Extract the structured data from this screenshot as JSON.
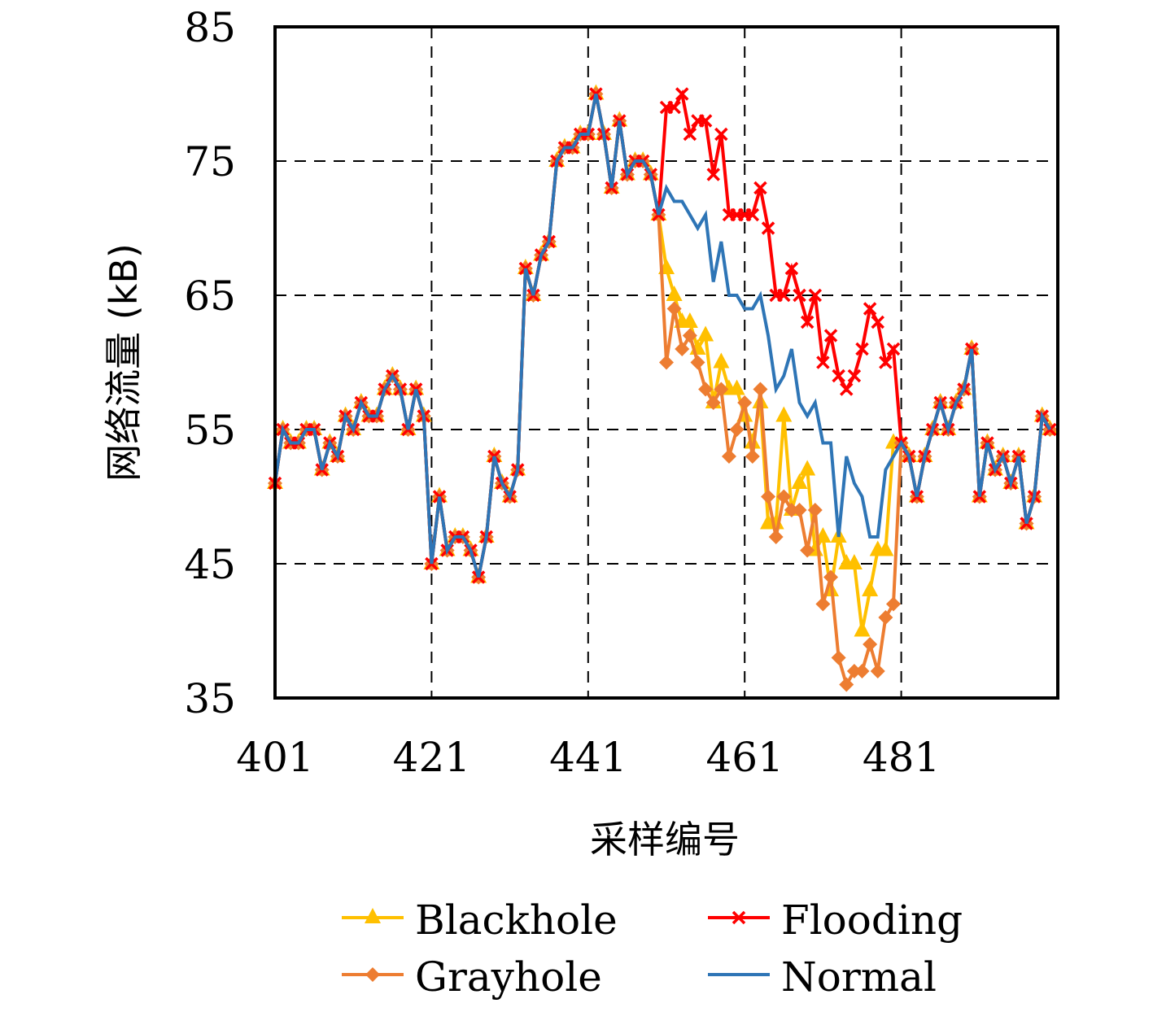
{
  "chart_data": {
    "type": "line",
    "title": "",
    "xlabel": "采样编号",
    "ylabel": "网络流量 (kB)",
    "xlim": [
      401,
      501
    ],
    "ylim": [
      35,
      85
    ],
    "xticks": [
      401,
      421,
      441,
      461,
      481
    ],
    "xtick_labels": [
      "401",
      "421",
      "441",
      "461",
      "481"
    ],
    "yticks": [
      35,
      45,
      55,
      65,
      75,
      85
    ],
    "ytick_labels": [
      "35",
      "45",
      "55",
      "65",
      "75",
      "85"
    ],
    "grid": "dashed",
    "legend_position": "bottom",
    "x": [
      401,
      402,
      403,
      404,
      405,
      406,
      407,
      408,
      409,
      410,
      411,
      412,
      413,
      414,
      415,
      416,
      417,
      418,
      419,
      420,
      421,
      422,
      423,
      424,
      425,
      426,
      427,
      428,
      429,
      430,
      431,
      432,
      433,
      434,
      435,
      436,
      437,
      438,
      439,
      440,
      441,
      442,
      443,
      444,
      445,
      446,
      447,
      448,
      449,
      450,
      451,
      452,
      453,
      454,
      455,
      456,
      457,
      458,
      459,
      460,
      461,
      462,
      463,
      464,
      465,
      466,
      467,
      468,
      469,
      470,
      471,
      472,
      473,
      474,
      475,
      476,
      477,
      478,
      479,
      480,
      481,
      482,
      483,
      484,
      485,
      486,
      487,
      488,
      489,
      490,
      491,
      492,
      493,
      494,
      495,
      496,
      497,
      498,
      499,
      500
    ],
    "series": [
      {
        "name": "Blackhole",
        "color": "#FFC000",
        "marker": "triangle",
        "values": [
          51,
          55,
          54,
          54,
          55,
          55,
          52,
          54,
          53,
          56,
          55,
          57,
          56,
          56,
          58,
          59,
          58,
          55,
          58,
          56,
          45,
          50,
          46,
          47,
          47,
          46,
          44,
          47,
          53,
          51,
          50,
          52,
          67,
          65,
          68,
          69,
          75,
          76,
          76,
          77,
          77,
          80,
          77,
          73,
          78,
          74,
          75,
          75,
          74,
          71,
          67,
          65,
          63,
          63,
          61,
          62,
          57,
          60,
          58,
          58,
          56,
          54,
          57,
          48,
          48,
          56,
          49,
          51,
          52,
          46,
          47,
          43,
          47,
          45,
          45,
          40,
          43,
          46,
          46,
          54,
          54,
          53,
          50,
          53,
          55,
          57,
          55,
          57,
          58,
          61,
          50,
          54,
          52,
          53,
          51,
          53,
          48,
          50,
          56,
          55
        ]
      },
      {
        "name": "Grayhole",
        "color": "#ED7D31",
        "marker": "diamond",
        "values": [
          51,
          55,
          54,
          54,
          55,
          55,
          52,
          54,
          53,
          56,
          55,
          57,
          56,
          56,
          58,
          59,
          58,
          55,
          58,
          56,
          45,
          50,
          46,
          47,
          47,
          46,
          44,
          47,
          53,
          51,
          50,
          52,
          67,
          65,
          68,
          69,
          75,
          76,
          76,
          77,
          77,
          80,
          77,
          73,
          78,
          74,
          75,
          75,
          74,
          71,
          60,
          64,
          61,
          62,
          60,
          58,
          57,
          58,
          53,
          55,
          57,
          53,
          58,
          50,
          47,
          50,
          49,
          49,
          46,
          49,
          42,
          44,
          38,
          36,
          37,
          37,
          39,
          37,
          41,
          42,
          54,
          53,
          50,
          53,
          55,
          57,
          55,
          57,
          58,
          61,
          50,
          54,
          52,
          53,
          51,
          53,
          48,
          50,
          56,
          55
        ]
      },
      {
        "name": "Flooding",
        "color": "#FF0000",
        "marker": "x",
        "values": [
          51,
          55,
          54,
          54,
          55,
          55,
          52,
          54,
          53,
          56,
          55,
          57,
          56,
          56,
          58,
          59,
          58,
          55,
          58,
          56,
          45,
          50,
          46,
          47,
          47,
          46,
          44,
          47,
          53,
          51,
          50,
          52,
          67,
          65,
          68,
          69,
          75,
          76,
          76,
          77,
          77,
          80,
          77,
          73,
          78,
          74,
          75,
          75,
          74,
          71,
          79,
          79,
          80,
          77,
          78,
          78,
          74,
          77,
          71,
          71,
          71,
          71,
          73,
          70,
          65,
          65,
          67,
          65,
          63,
          65,
          60,
          62,
          59,
          58,
          59,
          61,
          64,
          63,
          60,
          61,
          54,
          53,
          50,
          53,
          55,
          57,
          55,
          57,
          58,
          61,
          50,
          54,
          52,
          53,
          51,
          53,
          48,
          50,
          56,
          55
        ]
      },
      {
        "name": "Normal",
        "color": "#2E75B6",
        "marker": "none",
        "values": [
          51,
          55,
          54,
          54,
          55,
          55,
          52,
          54,
          53,
          56,
          55,
          57,
          56,
          56,
          58,
          59,
          58,
          55,
          58,
          56,
          45,
          50,
          46,
          47,
          47,
          46,
          44,
          47,
          53,
          51,
          50,
          52,
          67,
          65,
          68,
          69,
          75,
          76,
          76,
          77,
          77,
          80,
          77,
          73,
          78,
          74,
          75,
          75,
          74,
          71,
          73,
          72,
          72,
          71,
          70,
          71,
          66,
          69,
          65,
          65,
          64,
          64,
          65,
          62,
          58,
          59,
          61,
          57,
          56,
          57,
          54,
          54,
          47,
          53,
          51,
          50,
          47,
          47,
          52,
          53,
          54,
          53,
          50,
          53,
          55,
          57,
          55,
          57,
          58,
          61,
          50,
          54,
          52,
          53,
          51,
          53,
          48,
          50,
          56,
          55
        ]
      }
    ]
  }
}
